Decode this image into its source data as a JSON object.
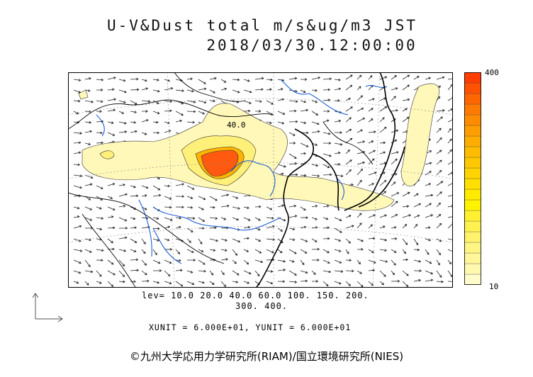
{
  "title": {
    "line1": "U-V&Dust total m/s&ug/m3 JST",
    "line2": "2018/03/30.12:00:00"
  },
  "map": {
    "contour_label": "40.0",
    "region": "East Asia"
  },
  "colorbar": {
    "max_label": "400",
    "min_label": "10",
    "colors": [
      "#fffccc",
      "#fff9b0",
      "#fff79a",
      "#fff585",
      "#fff36c",
      "#fff250",
      "#fff131",
      "#fff300",
      "#ffea00",
      "#ffdf00",
      "#ffd400",
      "#ffc800",
      "#ffbc00",
      "#ffad00",
      "#ff9e00",
      "#ff8c00",
      "#ff7a00",
      "#ff6600",
      "#ff5200",
      "#ff3e00"
    ]
  },
  "levels": {
    "line1": "lev= 10.0 20.0 40.0 60.0 100. 150. 200.",
    "line2": "300. 400."
  },
  "units": "XUNIT = 6.000E+01, YUNIT = 6.000E+01",
  "copyright": "©九州大学応用力学研究所(RIAM)/国立環境研究所(NIES)"
}
